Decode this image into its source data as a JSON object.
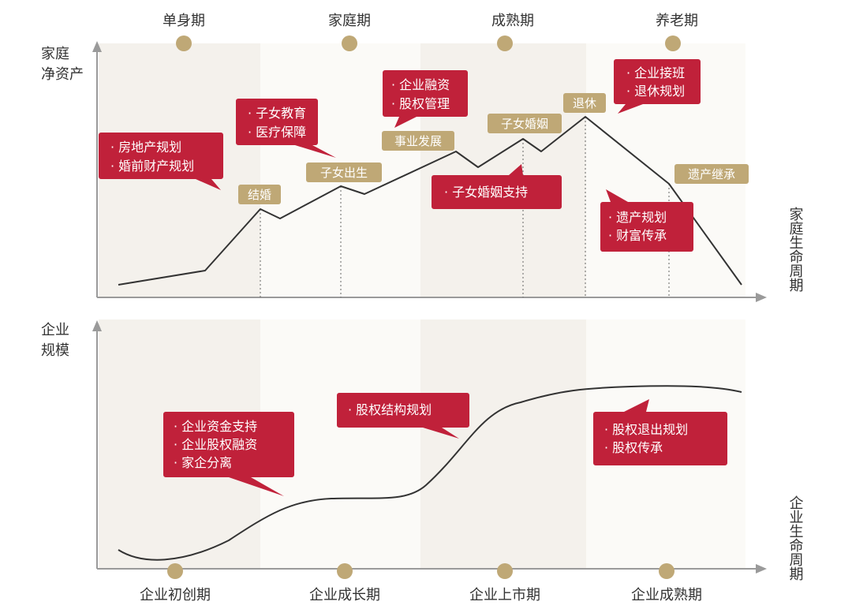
{
  "colors": {
    "band_shaded": "#f4f1ec",
    "band_light": "#fbfaf7",
    "gold": "#bfa876",
    "red": "#c0213a",
    "curve": "#333333",
    "axis": "#9a9a9a",
    "text": "#333333"
  },
  "top_chart": {
    "stages": [
      "单身期",
      "家庭期",
      "成熟期",
      "养老期"
    ],
    "y_axis_label": [
      "家庭",
      "净资产"
    ],
    "x_axis_label": "家庭生命周期",
    "events": [
      "结婚",
      "子女出生",
      "事业发展",
      "子女婚姻",
      "退休",
      "遗产继承"
    ],
    "bubbles": [
      [
        "· 房地产规划",
        "· 婚前财产规划"
      ],
      [
        "· 子女教育",
        "· 医疗保障"
      ],
      [
        "· 企业融资",
        "· 股权管理"
      ],
      [
        "· 子女婚姻支持"
      ],
      [
        "· 企业接班",
        "· 退休规划"
      ],
      [
        "· 遗产规划",
        "· 财富传承"
      ]
    ]
  },
  "bottom_chart": {
    "stages": [
      "企业初创期",
      "企业成长期",
      "企业上市期",
      "企业成熟期"
    ],
    "y_axis_label": [
      "企业",
      "规模"
    ],
    "x_axis_label": "企业生命周期",
    "bubbles": [
      [
        "· 企业资金支持",
        "· 企业股权融资",
        "· 家企分离"
      ],
      [
        "· 股权结构规划"
      ],
      [
        "· 股权退出规划",
        "· 股权传承"
      ]
    ]
  }
}
